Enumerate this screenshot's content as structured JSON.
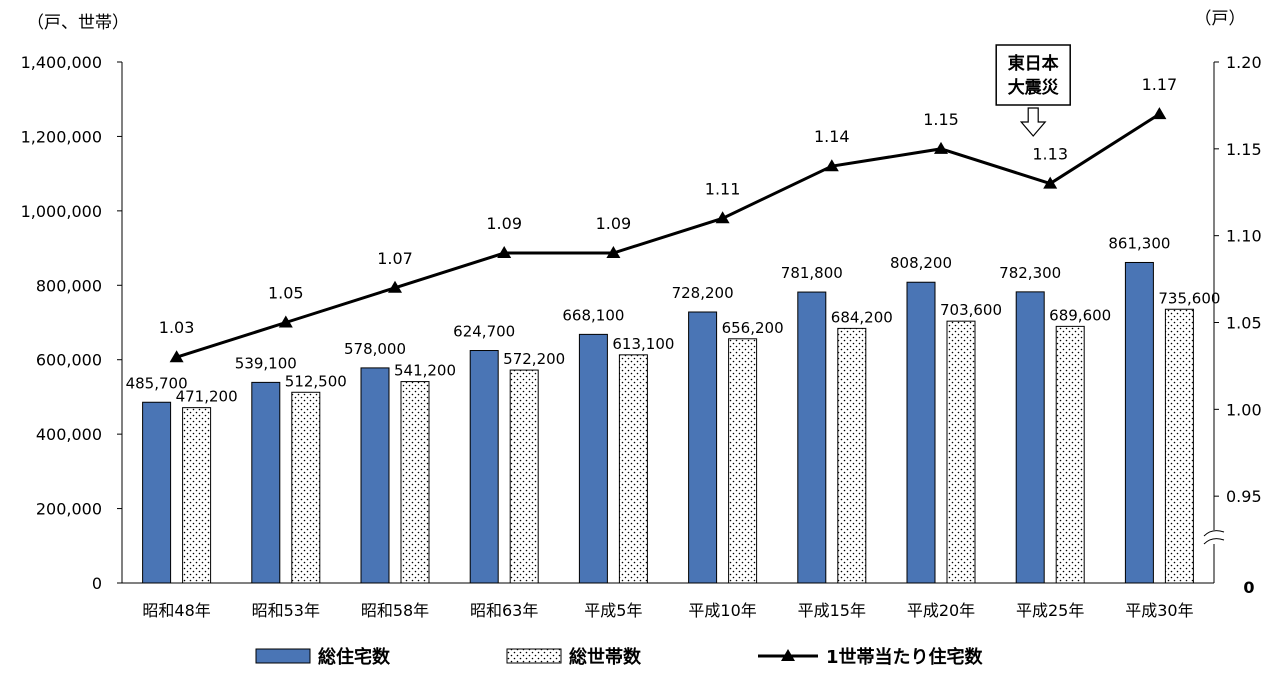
{
  "chart_data": {
    "type": "bar+line",
    "categories": [
      "昭和48年",
      "昭和53年",
      "昭和58年",
      "昭和63年",
      "平成5年",
      "平成10年",
      "平成15年",
      "平成20年",
      "平成25年",
      "平成30年"
    ],
    "series": [
      {
        "name": "総住宅数",
        "type": "bar",
        "axis": "left",
        "color": "#4a75b5",
        "values": [
          485700,
          539100,
          578000,
          624700,
          668100,
          728200,
          781800,
          808200,
          782300,
          861300
        ],
        "labels": [
          "485,700",
          "539,100",
          "578,000",
          "624,700",
          "668,100",
          "728,200",
          "781,800",
          "808,200",
          "782,300",
          "861,300"
        ]
      },
      {
        "name": "総世帯数",
        "type": "bar",
        "axis": "left",
        "pattern": "dotted",
        "values": [
          471200,
          512500,
          541200,
          572200,
          613100,
          656200,
          684200,
          703600,
          689600,
          735600
        ],
        "labels": [
          "471,200",
          "512,500",
          "541,200",
          "572,200",
          "613,100",
          "656,200",
          "684,200",
          "703,600",
          "689,600",
          "735,600"
        ]
      },
      {
        "name": "1世帯当たり住宅数",
        "type": "line",
        "axis": "right",
        "marker": "triangle",
        "values": [
          1.03,
          1.05,
          1.07,
          1.09,
          1.09,
          1.11,
          1.14,
          1.15,
          1.13,
          1.17
        ],
        "labels": [
          "1.03",
          "1.05",
          "1.07",
          "1.09",
          "1.09",
          "1.11",
          "1.14",
          "1.15",
          "1.13",
          "1.17"
        ]
      }
    ],
    "y_left": {
      "label": "（戸、世帯）",
      "min": 0,
      "max": 1400000,
      "ticks": [
        "0",
        "200,000",
        "400,000",
        "600,000",
        "800,000",
        "1,000,000",
        "1,200,000",
        "1,400,000"
      ]
    },
    "y_right": {
      "label": "（戸）",
      "min": 0.9,
      "max": 1.2,
      "ticks": [
        "0.95",
        "1.00",
        "1.05",
        "1.10",
        "1.15",
        "1.20"
      ],
      "zero_label": "0",
      "axis_break": true
    },
    "annotation": {
      "lines": [
        "東日本",
        "大震災"
      ],
      "category_index": 8
    },
    "legend": {
      "position": "bottom",
      "items": [
        "総住宅数",
        "総世帯数",
        "1世帯当たり住宅数"
      ]
    }
  }
}
